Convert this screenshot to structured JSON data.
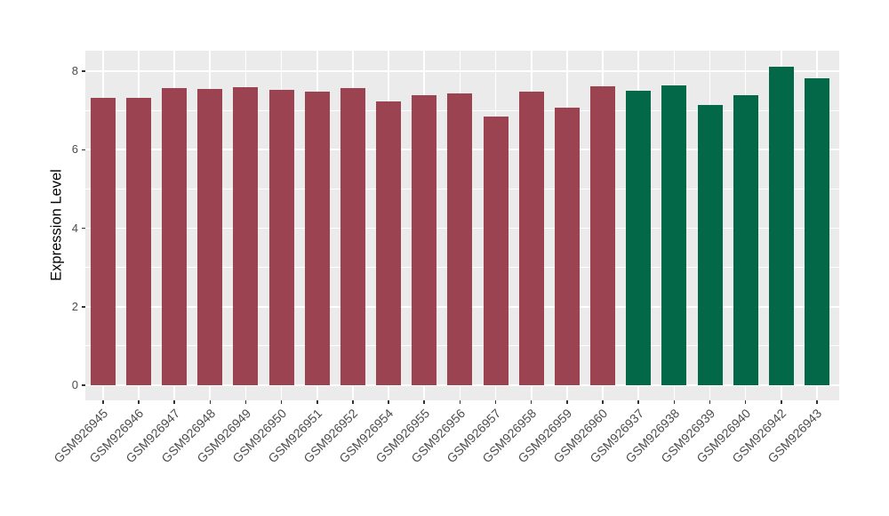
{
  "chart_data": {
    "type": "bar",
    "title": "",
    "xlabel": "",
    "ylabel": "Expression Level",
    "categories": [
      "GSM926945",
      "GSM926946",
      "GSM926947",
      "GSM926948",
      "GSM926949",
      "GSM926950",
      "GSM926951",
      "GSM926952",
      "GSM926954",
      "GSM926955",
      "GSM926956",
      "GSM926957",
      "GSM926958",
      "GSM926959",
      "GSM926960",
      "GSM926937",
      "GSM926938",
      "GSM926939",
      "GSM926940",
      "GSM926942",
      "GSM926943"
    ],
    "values": [
      7.32,
      7.32,
      7.57,
      7.55,
      7.59,
      7.53,
      7.47,
      7.57,
      7.24,
      7.38,
      7.43,
      6.84,
      7.49,
      7.07,
      7.61,
      7.51,
      7.63,
      7.14,
      7.39,
      8.12,
      7.83
    ],
    "bar_colors": [
      "#9C4351",
      "#9C4351",
      "#9C4351",
      "#9C4351",
      "#9C4351",
      "#9C4351",
      "#9C4351",
      "#9C4351",
      "#9C4351",
      "#9C4351",
      "#9C4351",
      "#9C4351",
      "#9C4351",
      "#9C4351",
      "#9C4351",
      "#026848",
      "#026848",
      "#026848",
      "#026848",
      "#026848",
      "#026848"
    ],
    "group_colors": {
      "left_group_red": "#9C4351",
      "right_group_green": "#026848"
    },
    "y_major_ticks": [
      0,
      2,
      4,
      6,
      8
    ],
    "y_minor_ticks": [
      1,
      3,
      5,
      7
    ],
    "ylim": [
      0,
      8.5
    ],
    "grid": "white major and minor horizontal lines plus vertical line per category, on gray panel",
    "legend_position": "none",
    "x_label_rotation_deg": 45
  },
  "theme": {
    "figure_background": "#FFFFFF",
    "panel_background": "#EBEBEB",
    "grid_color": "#FFFFFF",
    "axis_text_color": "#4D4D4D",
    "axis_title_color": "#000000",
    "tick_mark_color": "#333333"
  }
}
